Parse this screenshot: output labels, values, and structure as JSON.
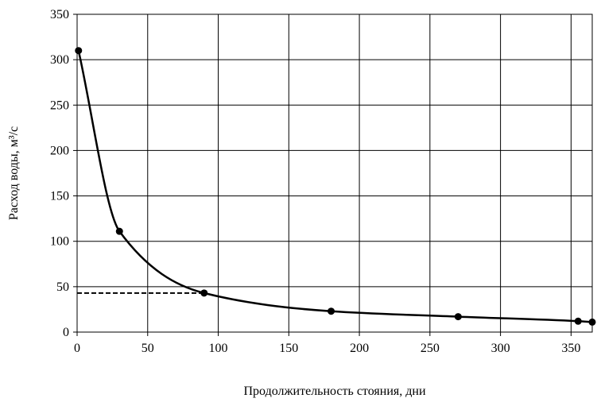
{
  "chart_data": {
    "type": "line",
    "title": "",
    "xlabel": "Продолжительность стояния, дни",
    "ylabel": "Расход воды, м³/с",
    "xlim": [
      0,
      365
    ],
    "ylim": [
      0,
      350
    ],
    "x_ticks": [
      0,
      50,
      100,
      150,
      200,
      250,
      300,
      350
    ],
    "y_ticks": [
      0,
      50,
      100,
      150,
      200,
      250,
      300,
      350
    ],
    "grid": true,
    "series": [
      {
        "color": "#000000",
        "smooth": true,
        "markers": true,
        "points": [
          {
            "x": 1,
            "y": 310
          },
          {
            "x": 30,
            "y": 111
          },
          {
            "x": 90,
            "y": 43
          },
          {
            "x": 180,
            "y": 23
          },
          {
            "x": 270,
            "y": 17
          },
          {
            "x": 355,
            "y": 12
          },
          {
            "x": 365,
            "y": 11
          }
        ]
      }
    ],
    "reference_line": {
      "style": "dashed",
      "color": "#000000",
      "x_from": 0,
      "x_to": 90,
      "y": 43
    }
  }
}
